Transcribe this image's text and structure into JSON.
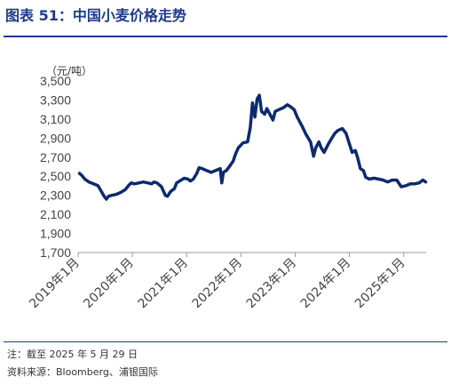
{
  "header": {
    "title": "图表 51：中国小麦价格走势"
  },
  "chart_data": {
    "type": "line",
    "unit_label": "（元/吨）",
    "yticks": [
      "3,500",
      "3,300",
      "3,100",
      "2,900",
      "2,700",
      "2,500",
      "2,300",
      "2,100",
      "1,900",
      "1,700"
    ],
    "ylim": [
      1700,
      3500
    ],
    "xticks": [
      "2019年1月",
      "2020年1月",
      "2021年1月",
      "2022年1月",
      "2023年1月",
      "2024年1月",
      "2025年1月"
    ],
    "x_start": "2019-01",
    "x_end": "2025-06",
    "color": "#0d2a6e",
    "series": [
      {
        "name": "",
        "points": [
          [
            "2019-01-10",
            2530
          ],
          [
            "2019-01-25",
            2510
          ],
          [
            "2019-02-15",
            2470
          ],
          [
            "2019-03-15",
            2440
          ],
          [
            "2019-04-15",
            2420
          ],
          [
            "2019-05-15",
            2400
          ],
          [
            "2019-06-10",
            2330
          ],
          [
            "2019-06-25",
            2290
          ],
          [
            "2019-07-10",
            2260
          ],
          [
            "2019-07-25",
            2290
          ],
          [
            "2019-08-15",
            2300
          ],
          [
            "2019-09-15",
            2310
          ],
          [
            "2019-10-15",
            2330
          ],
          [
            "2019-11-15",
            2360
          ],
          [
            "2019-12-10",
            2410
          ],
          [
            "2019-12-25",
            2430
          ],
          [
            "2020-01-15",
            2420
          ],
          [
            "2020-02-15",
            2430
          ],
          [
            "2020-03-15",
            2440
          ],
          [
            "2020-04-15",
            2430
          ],
          [
            "2020-05-10",
            2420
          ],
          [
            "2020-05-25",
            2440
          ],
          [
            "2020-06-15",
            2430
          ],
          [
            "2020-07-15",
            2390
          ],
          [
            "2020-08-10",
            2300
          ],
          [
            "2020-08-25",
            2290
          ],
          [
            "2020-09-15",
            2340
          ],
          [
            "2020-10-10",
            2370
          ],
          [
            "2020-10-25",
            2430
          ],
          [
            "2020-11-15",
            2450
          ],
          [
            "2020-12-15",
            2480
          ],
          [
            "2021-01-10",
            2470
          ],
          [
            "2021-01-25",
            2450
          ],
          [
            "2021-02-15",
            2470
          ],
          [
            "2021-03-10",
            2530
          ],
          [
            "2021-03-25",
            2590
          ],
          [
            "2021-04-15",
            2580
          ],
          [
            "2021-05-15",
            2560
          ],
          [
            "2021-06-15",
            2540
          ],
          [
            "2021-07-15",
            2560
          ],
          [
            "2021-08-15",
            2580
          ],
          [
            "2021-08-25",
            2430
          ],
          [
            "2021-09-05",
            2540
          ],
          [
            "2021-09-25",
            2560
          ],
          [
            "2021-10-15",
            2600
          ],
          [
            "2021-11-10",
            2660
          ],
          [
            "2021-11-25",
            2730
          ],
          [
            "2021-12-15",
            2800
          ],
          [
            "2022-01-15",
            2850
          ],
          [
            "2022-02-15",
            2860
          ],
          [
            "2022-03-05",
            3010
          ],
          [
            "2022-03-20",
            3270
          ],
          [
            "2022-04-05",
            3120
          ],
          [
            "2022-04-20",
            3310
          ],
          [
            "2022-05-05",
            3350
          ],
          [
            "2022-05-20",
            3180
          ],
          [
            "2022-06-10",
            3150
          ],
          [
            "2022-06-25",
            3210
          ],
          [
            "2022-07-15",
            3150
          ],
          [
            "2022-08-05",
            3090
          ],
          [
            "2022-08-20",
            3180
          ],
          [
            "2022-09-15",
            3200
          ],
          [
            "2022-10-15",
            3220
          ],
          [
            "2022-11-10",
            3250
          ],
          [
            "2022-12-01",
            3230
          ],
          [
            "2022-12-25",
            3200
          ],
          [
            "2023-01-15",
            3120
          ],
          [
            "2023-02-15",
            3030
          ],
          [
            "2023-03-15",
            2940
          ],
          [
            "2023-04-15",
            2860
          ],
          [
            "2023-05-05",
            2710
          ],
          [
            "2023-05-20",
            2800
          ],
          [
            "2023-06-10",
            2860
          ],
          [
            "2023-06-25",
            2800
          ],
          [
            "2023-07-15",
            2750
          ],
          [
            "2023-08-10",
            2830
          ],
          [
            "2023-09-05",
            2900
          ],
          [
            "2023-09-25",
            2950
          ],
          [
            "2023-10-15",
            2980
          ],
          [
            "2023-11-15",
            3000
          ],
          [
            "2023-12-10",
            2950
          ],
          [
            "2024-01-05",
            2820
          ],
          [
            "2024-01-20",
            2750
          ],
          [
            "2024-02-10",
            2770
          ],
          [
            "2024-02-25",
            2700
          ],
          [
            "2024-03-15",
            2580
          ],
          [
            "2024-04-05",
            2560
          ],
          [
            "2024-04-20",
            2490
          ],
          [
            "2024-05-15",
            2470
          ],
          [
            "2024-06-15",
            2480
          ],
          [
            "2024-07-15",
            2470
          ],
          [
            "2024-08-15",
            2460
          ],
          [
            "2024-09-15",
            2440
          ],
          [
            "2024-10-15",
            2460
          ],
          [
            "2024-11-15",
            2460
          ],
          [
            "2024-12-15",
            2390
          ],
          [
            "2025-01-15",
            2400
          ],
          [
            "2025-02-15",
            2420
          ],
          [
            "2025-03-15",
            2420
          ],
          [
            "2025-04-15",
            2430
          ],
          [
            "2025-05-10",
            2460
          ],
          [
            "2025-05-29",
            2440
          ]
        ]
      }
    ]
  },
  "footer": {
    "note": "注：截至 2025 年 5 月 29 日",
    "source": "资料来源：Bloomberg、浦银国际"
  }
}
